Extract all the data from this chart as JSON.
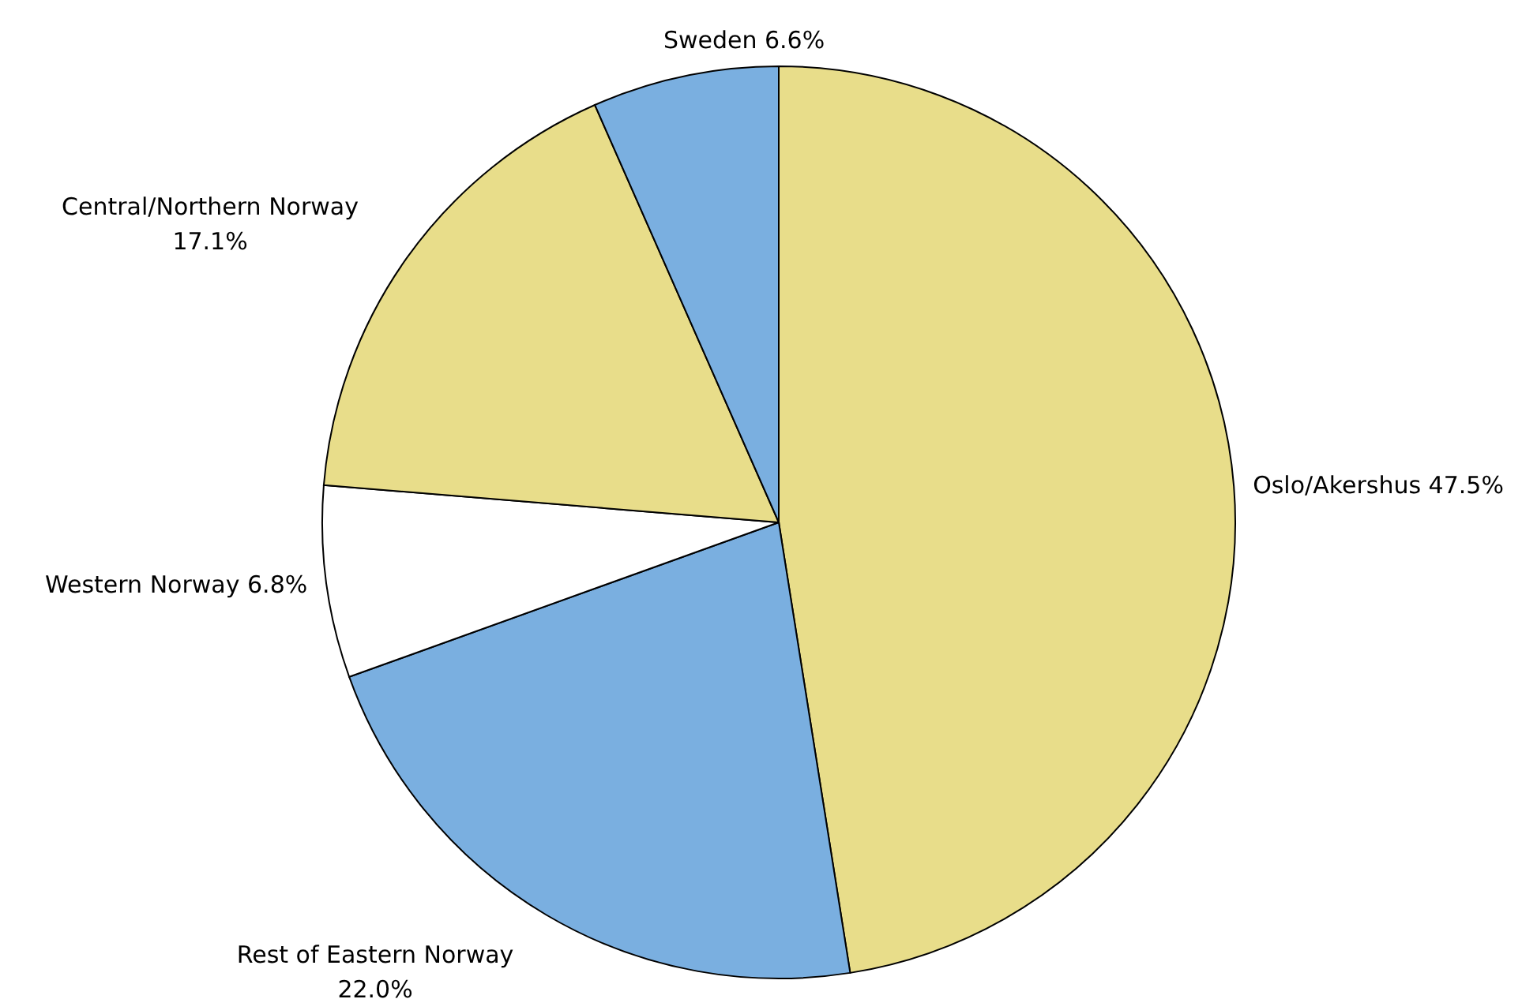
{
  "chart_data": {
    "type": "pie",
    "categories": [
      "Oslo/Akershus",
      "Rest of Eastern Norway",
      "Western Norway",
      "Central/Northern Norway",
      "Sweden"
    ],
    "values": [
      47.5,
      22.0,
      6.8,
      17.1,
      6.6
    ],
    "value_labels": [
      "47.5%",
      "22.0%",
      "6.8%",
      "17.1%",
      "6.6%"
    ],
    "colors": [
      "#e8dd8a",
      "#7aafe0",
      "#ffffff",
      "#e8dd8a",
      "#7aafe0"
    ]
  }
}
